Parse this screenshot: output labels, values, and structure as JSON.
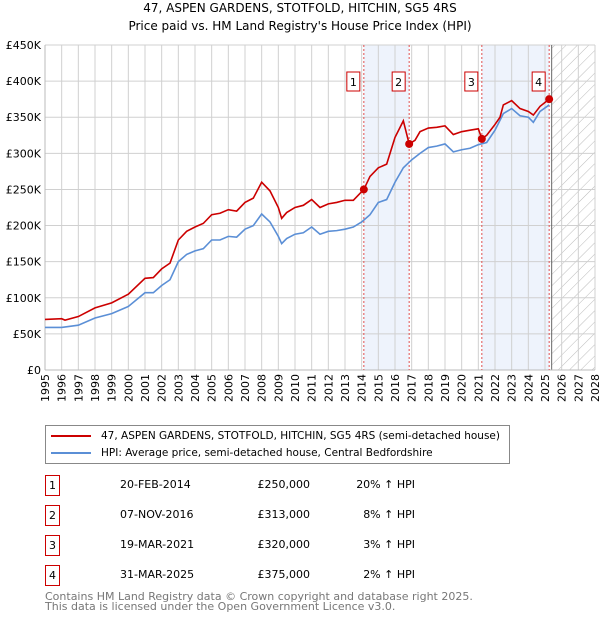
{
  "chart_data": {
    "type": "line",
    "title": "47, ASPEN GARDENS, STOTFOLD, HITCHIN, SG5 4RS",
    "subtitle": "Price paid vs. HM Land Registry's House Price Index (HPI)",
    "xlim": [
      1995,
      2028
    ],
    "ylim": [
      0,
      450000
    ],
    "x_ticks": [
      "1995",
      "1996",
      "1997",
      "1998",
      "1999",
      "2000",
      "2001",
      "2002",
      "2003",
      "2004",
      "2005",
      "2006",
      "2007",
      "2008",
      "2009",
      "2010",
      "2011",
      "2012",
      "2013",
      "2014",
      "2015",
      "2016",
      "2017",
      "2018",
      "2019",
      "2020",
      "2021",
      "2022",
      "2023",
      "2024",
      "2025",
      "2026",
      "2027",
      "2028"
    ],
    "y_ticks": [
      {
        "v": 0,
        "label": "£0"
      },
      {
        "v": 50000,
        "label": "£50K"
      },
      {
        "v": 100000,
        "label": "£100K"
      },
      {
        "v": 150000,
        "label": "£150K"
      },
      {
        "v": 200000,
        "label": "£200K"
      },
      {
        "v": 250000,
        "label": "£250K"
      },
      {
        "v": 300000,
        "label": "£300K"
      },
      {
        "v": 350000,
        "label": "£350K"
      },
      {
        "v": 400000,
        "label": "£400K"
      },
      {
        "v": 450000,
        "label": "£450K"
      }
    ],
    "grid": true,
    "shaded_ranges": [
      [
        2014.13,
        2016.85
      ],
      [
        2021.21,
        2025.25
      ]
    ],
    "forecast_from": 2025.4,
    "series": [
      {
        "name": "47, ASPEN GARDENS, STOTFOLD, HITCHIN, SG5 4RS (semi-detached house)",
        "color": "#cc0000",
        "x": [
          1995,
          1996,
          1996.2,
          1997,
          1998,
          1999,
          2000,
          2001,
          2001.5,
          2002,
          2002.5,
          2003,
          2003.5,
          2004,
          2004.5,
          2005,
          2005.5,
          2006,
          2006.5,
          2007,
          2007.5,
          2008,
          2008.5,
          2009,
          2009.2,
          2009.5,
          2010,
          2010.5,
          2011,
          2011.5,
          2012,
          2012.5,
          2013,
          2013.5,
          2014.13,
          2014.5,
          2015,
          2015.5,
          2016,
          2016.5,
          2016.85,
          2017.2,
          2017.5,
          2018,
          2018.5,
          2019,
          2019.5,
          2020,
          2020.5,
          2021,
          2021.21,
          2021.5,
          2022,
          2022.3,
          2022.5,
          2023,
          2023.5,
          2024,
          2024.3,
          2024.7,
          2025.25
        ],
        "y": [
          70000,
          71000,
          69000,
          74000,
          86000,
          93000,
          105000,
          127000,
          128000,
          140000,
          148000,
          180000,
          192000,
          198000,
          203000,
          215000,
          217000,
          222000,
          220000,
          232000,
          238000,
          260000,
          248000,
          225000,
          210000,
          218000,
          225000,
          228000,
          236000,
          225000,
          230000,
          232000,
          235000,
          235000,
          250000,
          268000,
          280000,
          285000,
          322000,
          345000,
          313000,
          318000,
          330000,
          335000,
          336000,
          338000,
          326000,
          330000,
          332000,
          334000,
          320000,
          325000,
          340000,
          350000,
          367000,
          373000,
          362000,
          358000,
          353000,
          365000,
          375000
        ]
      },
      {
        "name": "HPI: Average price, semi-detached house, Central Bedfordshire",
        "color": "#5b8fd6",
        "x": [
          1995,
          1996,
          1997,
          1998,
          1999,
          2000,
          2001,
          2001.5,
          2002,
          2002.5,
          2003,
          2003.5,
          2004,
          2004.5,
          2005,
          2005.5,
          2006,
          2006.5,
          2007,
          2007.5,
          2008,
          2008.5,
          2009,
          2009.2,
          2009.5,
          2010,
          2010.5,
          2011,
          2011.5,
          2012,
          2012.5,
          2013,
          2013.5,
          2014,
          2014.5,
          2015,
          2015.5,
          2016,
          2016.5,
          2017,
          2017.5,
          2018,
          2018.5,
          2019,
          2019.5,
          2020,
          2020.5,
          2021,
          2021.5,
          2022,
          2022.5,
          2023,
          2023.5,
          2024,
          2024.3,
          2024.7,
          2025.25
        ],
        "y": [
          59000,
          59000,
          62000,
          72000,
          78000,
          88000,
          107000,
          107000,
          117000,
          125000,
          150000,
          160000,
          165000,
          168000,
          180000,
          180000,
          185000,
          184000,
          195000,
          200000,
          216000,
          205000,
          185000,
          175000,
          182000,
          188000,
          190000,
          198000,
          188000,
          192000,
          193000,
          195000,
          198000,
          205000,
          215000,
          232000,
          236000,
          260000,
          280000,
          291000,
          300000,
          308000,
          310000,
          313000,
          302000,
          305000,
          307000,
          312000,
          315000,
          332000,
          355000,
          362000,
          352000,
          350000,
          343000,
          358000,
          367000
        ]
      }
    ],
    "sales": [
      {
        "label": "1",
        "x": 2014.13,
        "y": 250000
      },
      {
        "label": "2",
        "x": 2016.85,
        "y": 313000
      },
      {
        "label": "3",
        "x": 2021.21,
        "y": 320000
      },
      {
        "label": "4",
        "x": 2025.25,
        "y": 375000
      }
    ]
  },
  "legend": {
    "property": "47, ASPEN GARDENS, STOTFOLD, HITCHIN, SG5 4RS (semi-detached house)",
    "hpi": "HPI: Average price, semi-detached house, Central Bedfordshire"
  },
  "transactions": [
    {
      "num": "1",
      "date": "20-FEB-2014",
      "price": "£250,000",
      "hpi": "20% ↑ HPI"
    },
    {
      "num": "2",
      "date": "07-NOV-2016",
      "price": "£313,000",
      "hpi": "8% ↑ HPI"
    },
    {
      "num": "3",
      "date": "19-MAR-2021",
      "price": "£320,000",
      "hpi": "3% ↑ HPI"
    },
    {
      "num": "4",
      "date": "31-MAR-2025",
      "price": "£375,000",
      "hpi": "2% ↑ HPI"
    }
  ],
  "footer": {
    "line1": "Contains HM Land Registry data © Crown copyright and database right 2025.",
    "line2": "This data is licensed under the Open Government Licence v3.0."
  }
}
